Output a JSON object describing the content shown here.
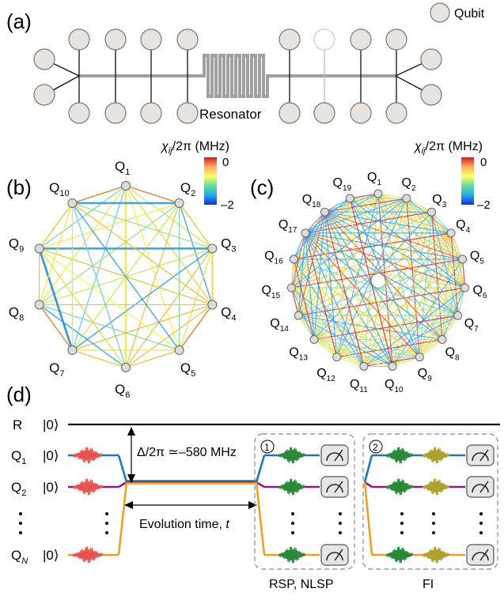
{
  "panels": {
    "a": "(a)",
    "b": "(b)",
    "c": "(c)",
    "d": "(d)"
  },
  "legend": {
    "qubit_label": "Qubit"
  },
  "resonator_label": "Resonator",
  "colorbar": {
    "label_main": "χ",
    "label_sub": "ij",
    "label_rest": "/2π (MHz)",
    "max_label": "0",
    "min_label": "–2"
  },
  "graph_b": {
    "labels": [
      "Q1",
      "Q2",
      "Q3",
      "Q4",
      "Q5",
      "Q6",
      "Q7",
      "Q8",
      "Q9",
      "Q10"
    ],
    "label_prefix": "Q"
  },
  "graph_c": {
    "labels": [
      "Q1",
      "Q2",
      "Q3",
      "Q4",
      "Q5",
      "Q6",
      "Q7",
      "Q8",
      "Q9",
      "Q10",
      "Q11",
      "Q12",
      "Q13",
      "Q14",
      "Q15",
      "Q16",
      "Q17",
      "Q18",
      "Q19"
    ],
    "label_prefix": "Q"
  },
  "sequence": {
    "row_R_prefix": "R",
    "ket": "|0⟩",
    "rows": [
      {
        "prefix": "Q",
        "sub": "1",
        "color": "#1f77b4"
      },
      {
        "prefix": "Q",
        "sub": "2",
        "color": "#8b1a8b"
      },
      {
        "prefix": "Q",
        "sub": "N",
        "color": "#f0a020"
      }
    ],
    "detuning_label": "Δ/2π  ≃–580 MHz",
    "evolution_label": "Evolution time, ",
    "evolution_t": "t",
    "box1_number": "1",
    "box2_number": "2",
    "box1_caption": "RSP, NLSP",
    "box2_caption": "FI"
  },
  "colors": {
    "chip_line": "#a0a0a0",
    "qubit_fill": "#e8e3de",
    "drive_pulse": "#e85050",
    "readout_pulse": "#2a8a3a",
    "fi_pulse": "#b0a030"
  }
}
